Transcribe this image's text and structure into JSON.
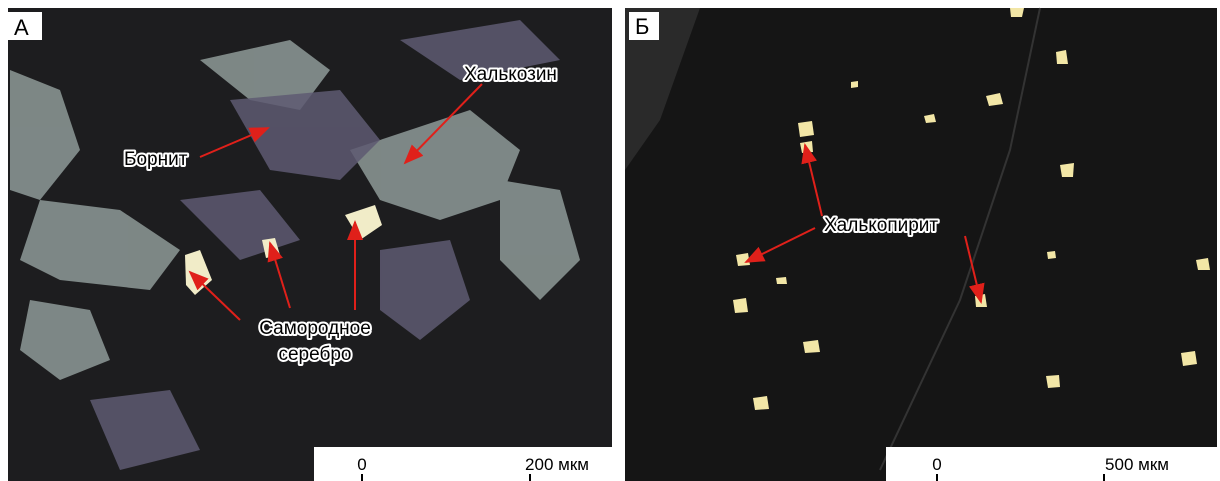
{
  "panels": [
    {
      "label": "А",
      "annotations": [
        "Борнит",
        "Халькозин",
        "Самородное",
        "серебро"
      ],
      "scale": [
        "0",
        "200 мкм"
      ]
    },
    {
      "label": "Б",
      "annotations": [
        "Халькопирит"
      ],
      "scale": [
        "0",
        "500 мкм"
      ]
    }
  ]
}
